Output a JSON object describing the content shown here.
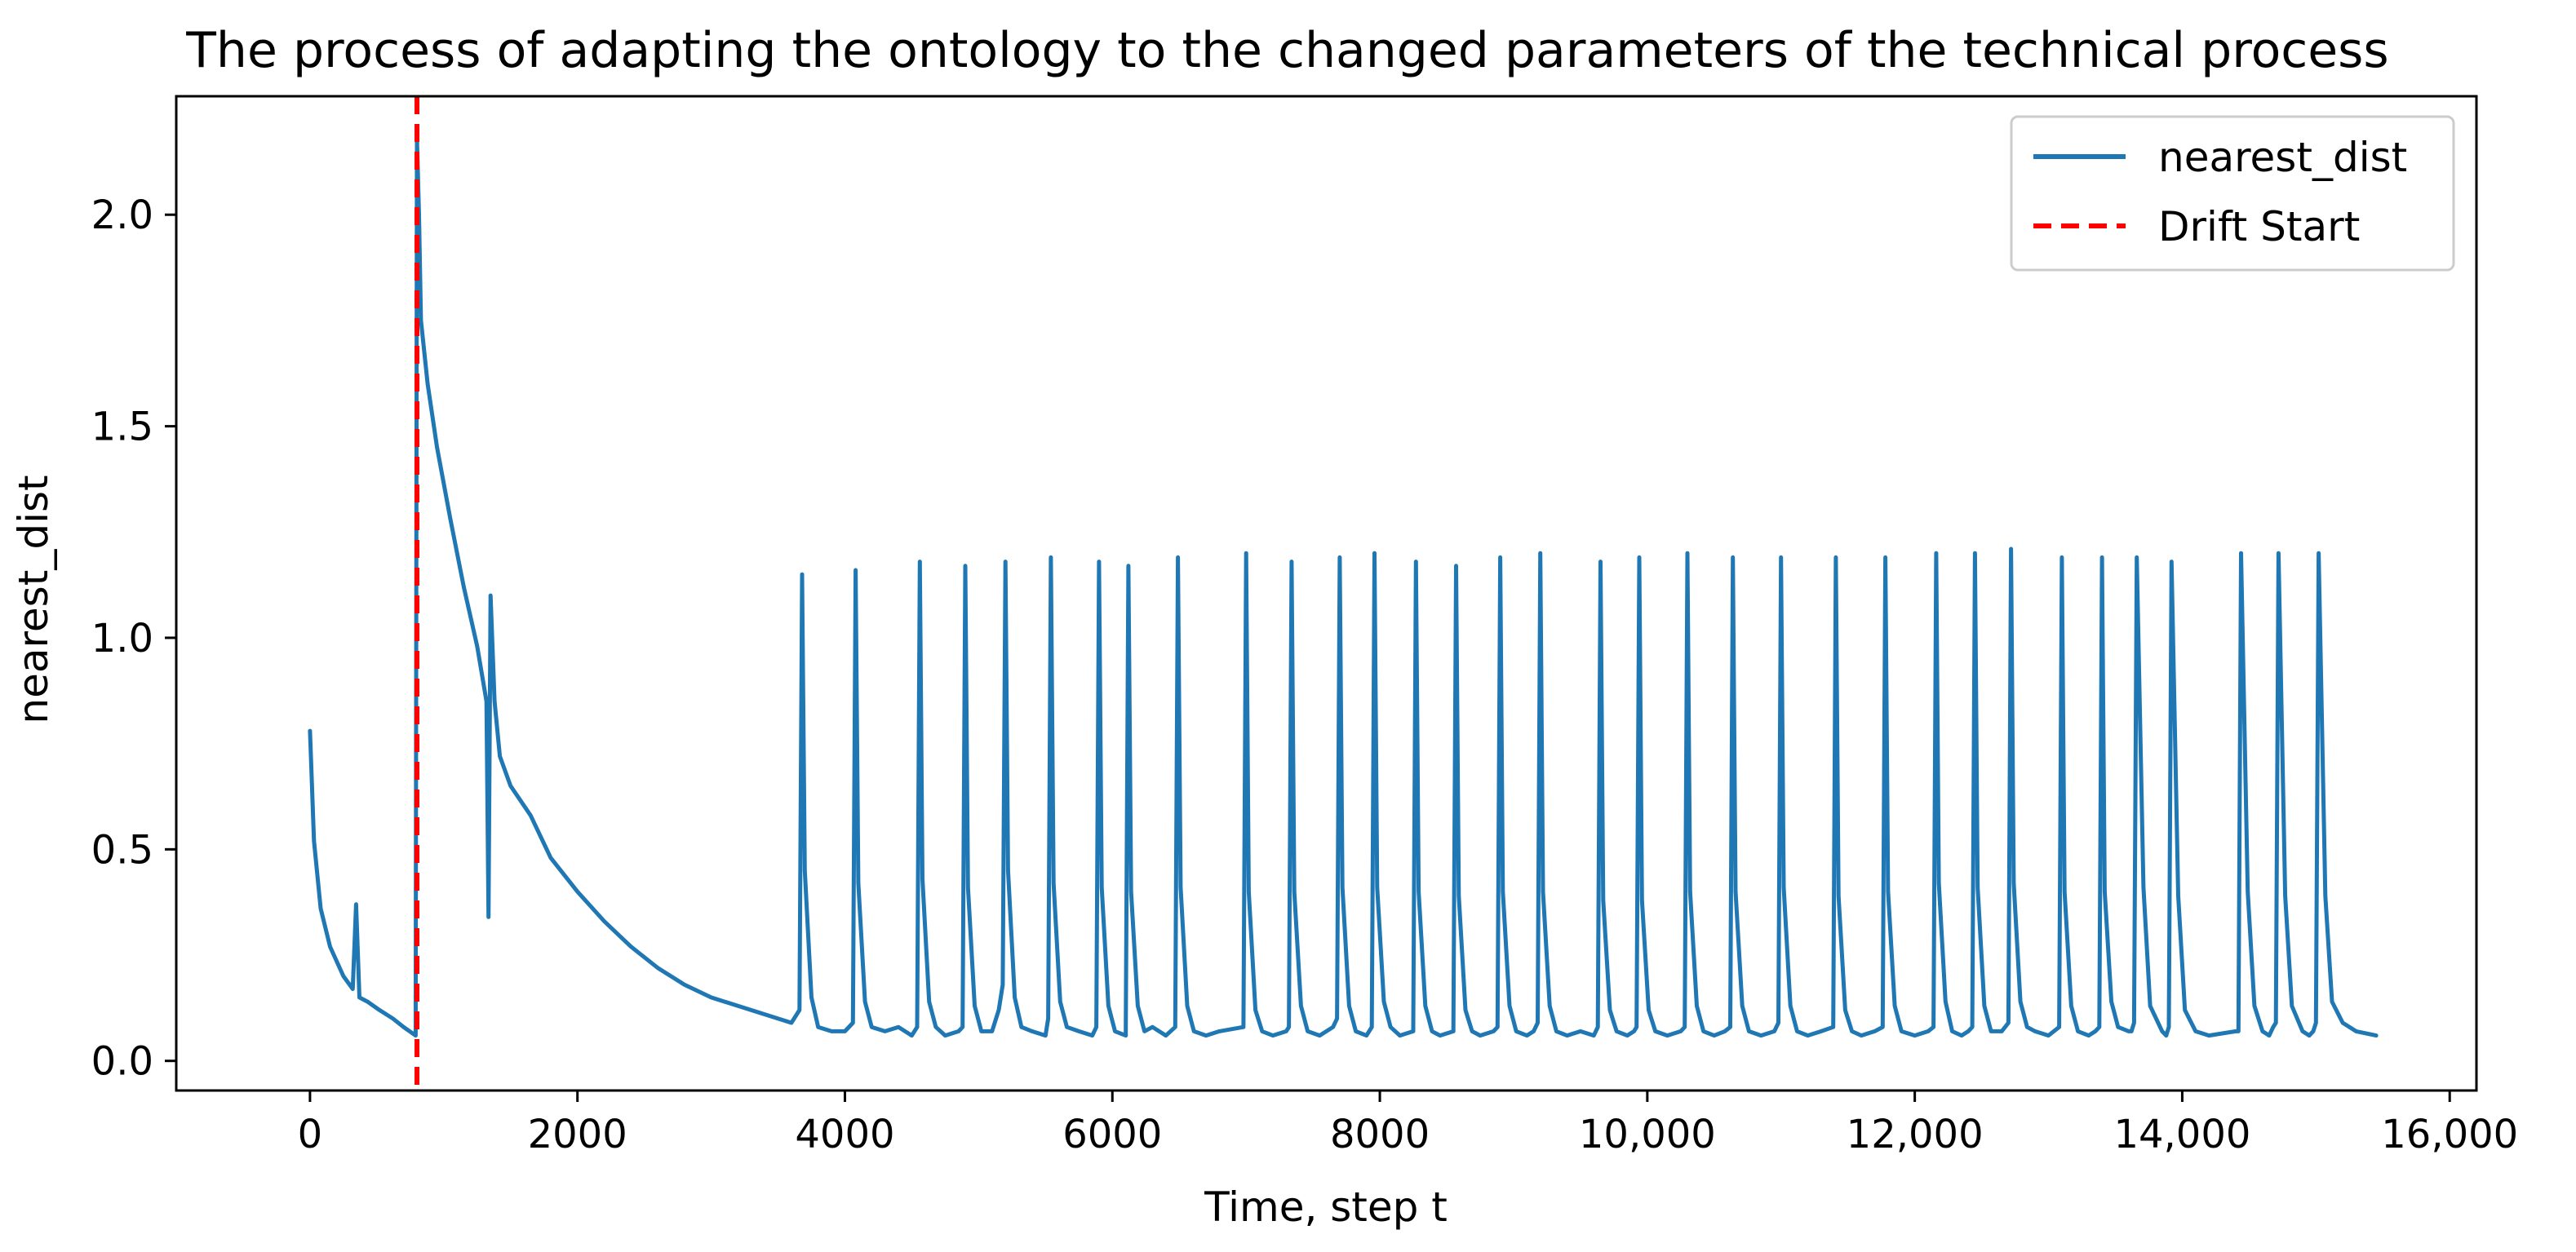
{
  "chart_data": {
    "type": "line",
    "title": "The process of adapting the ontology to the changed parameters of the technical process",
    "xlabel": "Time, step t",
    "ylabel": "nearest_dist",
    "xlim": [
      -1000,
      16200
    ],
    "ylim": [
      -0.07,
      2.28
    ],
    "xticks": [
      0,
      2000,
      4000,
      6000,
      8000,
      10000,
      12000,
      14000,
      16000
    ],
    "xtick_labels": [
      "0",
      "2000",
      "4000",
      "6000",
      "8000",
      "10,000",
      "12,000",
      "14,000",
      "16,000"
    ],
    "yticks": [
      0.0,
      0.5,
      1.0,
      1.5,
      2.0
    ],
    "ytick_labels": [
      "0.0",
      "0.5",
      "1.0",
      "1.5",
      "2.0"
    ],
    "grid": false,
    "legend_position": "top-right",
    "series": [
      {
        "name": "nearest_dist",
        "color": "#1f77b4",
        "style": "solid",
        "x": [
          0,
          30,
          80,
          150,
          250,
          320,
          345,
          370,
          430,
          520,
          620,
          700,
          790,
          800,
          815,
          830,
          880,
          950,
          1050,
          1150,
          1250,
          1320,
          1335,
          1350,
          1380,
          1420,
          1500,
          1650,
          1800,
          2000,
          2200,
          2400,
          2600,
          2800,
          3000,
          3200,
          3400,
          3600,
          3660,
          3680,
          3700,
          3750,
          3800,
          3900,
          4000,
          4060,
          4080,
          4100,
          4150,
          4200,
          4300,
          4400,
          4500,
          4540,
          4560,
          4580,
          4630,
          4680,
          4750,
          4850,
          4880,
          4900,
          4920,
          4970,
          5020,
          5100,
          5150,
          5180,
          5200,
          5220,
          5270,
          5320,
          5400,
          5500,
          5520,
          5540,
          5560,
          5610,
          5660,
          5750,
          5850,
          5880,
          5900,
          5920,
          5970,
          6020,
          6100,
          6100,
          6120,
          6140,
          6190,
          6240,
          6300,
          6400,
          6470,
          6490,
          6510,
          6560,
          6610,
          6700,
          6800,
          6980,
          7000,
          7020,
          7070,
          7120,
          7200,
          7300,
          7320,
          7340,
          7360,
          7410,
          7460,
          7550,
          7650,
          7680,
          7700,
          7720,
          7770,
          7820,
          7900,
          7940,
          7960,
          7980,
          8030,
          8080,
          8150,
          8250,
          8250,
          8270,
          8290,
          8340,
          8390,
          8450,
          8550,
          8550,
          8570,
          8590,
          8640,
          8690,
          8750,
          8850,
          8880,
          8900,
          8920,
          8970,
          9020,
          9100,
          9150,
          9180,
          9200,
          9220,
          9270,
          9320,
          9400,
          9500,
          9600,
          9630,
          9650,
          9670,
          9720,
          9770,
          9850,
          9900,
          9920,
          9940,
          9960,
          10010,
          10060,
          10150,
          10250,
          10280,
          10300,
          10320,
          10370,
          10420,
          10500,
          10580,
          10620,
          10640,
          10660,
          10710,
          10760,
          10850,
          10950,
          10980,
          11000,
          11020,
          11070,
          11120,
          11200,
          11300,
          11390,
          11410,
          11430,
          11480,
          11530,
          11600,
          11700,
          11760,
          11780,
          11800,
          11850,
          11900,
          12000,
          12100,
          12140,
          12160,
          12180,
          12230,
          12280,
          12350,
          12400,
          12430,
          12450,
          12470,
          12520,
          12570,
          12650,
          12700,
          12720,
          12740,
          12790,
          12840,
          12900,
          13000,
          13080,
          13100,
          13120,
          13170,
          13220,
          13300,
          13350,
          13380,
          13400,
          13420,
          13470,
          13520,
          13600,
          13620,
          13640,
          13660,
          13710,
          13760,
          13850,
          13880,
          13900,
          13920,
          13970,
          14020,
          14100,
          14200,
          14400,
          14420,
          14440,
          14490,
          14540,
          14600,
          14650,
          14680,
          14700,
          14720,
          14770,
          14820,
          14900,
          14950,
          14980,
          15000,
          15020,
          15070,
          15120,
          15200,
          15300,
          15450
        ],
        "y": [
          0.78,
          0.52,
          0.36,
          0.27,
          0.2,
          0.17,
          0.37,
          0.15,
          0.14,
          0.12,
          0.1,
          0.08,
          0.06,
          2.18,
          2.0,
          1.75,
          1.6,
          1.45,
          1.28,
          1.12,
          0.98,
          0.85,
          0.34,
          1.1,
          0.85,
          0.72,
          0.65,
          0.58,
          0.48,
          0.4,
          0.33,
          0.27,
          0.22,
          0.18,
          0.15,
          0.13,
          0.11,
          0.09,
          0.12,
          1.15,
          0.45,
          0.15,
          0.08,
          0.07,
          0.07,
          0.09,
          1.16,
          0.42,
          0.14,
          0.08,
          0.07,
          0.08,
          0.06,
          0.08,
          1.18,
          0.43,
          0.14,
          0.08,
          0.06,
          0.07,
          0.08,
          1.17,
          0.41,
          0.13,
          0.07,
          0.07,
          0.12,
          0.18,
          1.18,
          0.45,
          0.15,
          0.08,
          0.07,
          0.06,
          0.1,
          1.19,
          0.42,
          0.14,
          0.08,
          0.07,
          0.06,
          0.08,
          1.18,
          0.41,
          0.13,
          0.07,
          0.06,
          0.08,
          1.17,
          0.4,
          0.13,
          0.07,
          0.08,
          0.06,
          0.08,
          1.19,
          0.41,
          0.13,
          0.07,
          0.06,
          0.07,
          0.08,
          1.2,
          0.4,
          0.12,
          0.07,
          0.06,
          0.07,
          0.08,
          1.18,
          0.4,
          0.13,
          0.07,
          0.06,
          0.08,
          0.1,
          1.19,
          0.41,
          0.13,
          0.07,
          0.06,
          0.08,
          1.2,
          0.41,
          0.14,
          0.08,
          0.06,
          0.07,
          0.08,
          1.18,
          0.4,
          0.13,
          0.07,
          0.06,
          0.07,
          0.08,
          1.17,
          0.39,
          0.12,
          0.07,
          0.06,
          0.07,
          0.08,
          1.19,
          0.4,
          0.13,
          0.07,
          0.06,
          0.07,
          0.09,
          1.2,
          0.4,
          0.13,
          0.07,
          0.06,
          0.07,
          0.06,
          0.08,
          1.18,
          0.38,
          0.12,
          0.07,
          0.06,
          0.07,
          0.08,
          1.19,
          0.38,
          0.12,
          0.07,
          0.06,
          0.07,
          0.08,
          1.2,
          0.4,
          0.13,
          0.07,
          0.06,
          0.07,
          0.08,
          1.19,
          0.4,
          0.13,
          0.07,
          0.06,
          0.07,
          0.09,
          1.19,
          0.41,
          0.13,
          0.07,
          0.06,
          0.07,
          0.08,
          1.19,
          0.39,
          0.12,
          0.07,
          0.06,
          0.07,
          0.08,
          1.19,
          0.4,
          0.13,
          0.07,
          0.06,
          0.07,
          0.08,
          1.2,
          0.42,
          0.14,
          0.07,
          0.06,
          0.07,
          0.08,
          1.2,
          0.41,
          0.13,
          0.07,
          0.07,
          0.09,
          1.21,
          0.42,
          0.14,
          0.08,
          0.07,
          0.06,
          0.08,
          1.19,
          0.4,
          0.13,
          0.07,
          0.06,
          0.07,
          0.08,
          1.19,
          0.4,
          0.14,
          0.08,
          0.07,
          0.07,
          0.09,
          1.19,
          0.41,
          0.13,
          0.07,
          0.06,
          0.08,
          1.18,
          0.39,
          0.12,
          0.07,
          0.06,
          0.07,
          0.07,
          1.2,
          0.4,
          0.13,
          0.07,
          0.06,
          0.08,
          0.09,
          1.2,
          0.39,
          0.13,
          0.07,
          0.06,
          0.07,
          0.09,
          1.2,
          0.39,
          0.14,
          0.09,
          0.07,
          0.06
        ]
      },
      {
        "name": "Drift Start",
        "color": "#ff0000",
        "style": "dashed",
        "x_vertical": 800
      }
    ]
  }
}
